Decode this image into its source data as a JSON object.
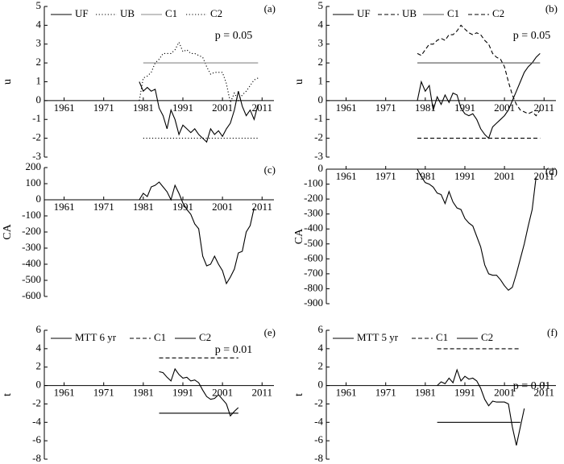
{
  "chart_data": [
    {
      "type": "line",
      "panel_label": "(a)",
      "ylabel": "u",
      "annotation": "p = 0.05",
      "xlim": [
        1956,
        2014
      ],
      "xticks": [
        1961,
        1971,
        1981,
        1991,
        2001,
        2011
      ],
      "ylim": [
        -3,
        5
      ],
      "yticks": [
        -3,
        -2,
        -1,
        0,
        1,
        2,
        3,
        4,
        5
      ],
      "series": [
        {
          "name": "UF",
          "color": "#000000",
          "dash": "solid",
          "x": [
            1980,
            1981,
            1982,
            1983,
            1984,
            1985,
            1986,
            1987,
            1988,
            1989,
            1990,
            1991,
            1992,
            1993,
            1994,
            1995,
            1996,
            1997,
            1998,
            1999,
            2000,
            2001,
            2002,
            2003,
            2004,
            2005,
            2006,
            2007,
            2008,
            2009,
            2010
          ],
          "values": [
            1.0,
            0.5,
            0.7,
            0.5,
            0.6,
            -0.4,
            -0.8,
            -1.5,
            -0.5,
            -1.0,
            -1.8,
            -1.3,
            -1.5,
            -1.7,
            -1.5,
            -1.8,
            -2.0,
            -2.2,
            -1.5,
            -1.8,
            -1.6,
            -1.9,
            -1.5,
            -1.2,
            -0.5,
            0.5,
            -0.3,
            -0.8,
            -0.5,
            -1.0,
            -0.2
          ]
        },
        {
          "name": "UB",
          "color": "#000000",
          "dash": "dotted",
          "x": [
            1980,
            1981,
            1982,
            1983,
            1984,
            1985,
            1986,
            1987,
            1988,
            1989,
            1990,
            1991,
            1992,
            1993,
            1994,
            1995,
            1996,
            1997,
            1998,
            1999,
            2000,
            2001,
            2002,
            2003,
            2004,
            2005,
            2006,
            2007,
            2008,
            2009,
            2010
          ],
          "values": [
            0.0,
            1.2,
            1.3,
            1.5,
            2.0,
            2.2,
            2.5,
            2.5,
            2.5,
            2.7,
            3.1,
            2.6,
            2.7,
            2.5,
            2.5,
            2.4,
            2.3,
            1.8,
            1.4,
            1.5,
            1.5,
            1.5,
            0.9,
            -0.1,
            0.4,
            0.0,
            0.3,
            0.5,
            0.8,
            1.1,
            1.2
          ]
        },
        {
          "name": "C1",
          "color": "#888888",
          "dash": "solid",
          "x": [
            1981,
            2010
          ],
          "values": [
            2,
            2
          ]
        },
        {
          "name": "C2",
          "color": "#000000",
          "dash": "dotted",
          "x": [
            1981,
            2010
          ],
          "values": [
            -2,
            -2
          ]
        }
      ]
    },
    {
      "type": "line",
      "panel_label": "(b)",
      "ylabel": "u",
      "annotation": "p = 0.05",
      "xlim": [
        1956,
        2014
      ],
      "xticks": [
        1961,
        1971,
        1981,
        1991,
        2001,
        2011
      ],
      "ylim": [
        -3,
        5
      ],
      "yticks": [
        -3,
        -2,
        -1,
        0,
        1,
        2,
        3,
        4,
        5
      ],
      "series": [
        {
          "name": "UF",
          "color": "#000000",
          "dash": "solid",
          "x": [
            1979,
            1980,
            1981,
            1982,
            1983,
            1984,
            1985,
            1986,
            1987,
            1988,
            1989,
            1990,
            1991,
            1992,
            1993,
            1994,
            1995,
            1996,
            1997,
            1998,
            1999,
            2000,
            2001,
            2002,
            2003,
            2004,
            2005,
            2006,
            2007,
            2008,
            2009,
            2010
          ],
          "values": [
            0.0,
            1.0,
            0.5,
            0.8,
            -0.5,
            0.2,
            -0.2,
            0.3,
            -0.1,
            0.4,
            0.3,
            -0.4,
            -0.7,
            -0.8,
            -0.7,
            -1.0,
            -1.5,
            -1.8,
            -2.0,
            -1.4,
            -1.2,
            -1.0,
            -0.8,
            -0.5,
            0.0,
            0.5,
            1.0,
            1.5,
            1.8,
            2.0,
            2.3,
            2.5
          ]
        },
        {
          "name": "UB",
          "color": "#000000",
          "dash": "dashed",
          "x": [
            1979,
            1980,
            1981,
            1982,
            1983,
            1984,
            1985,
            1986,
            1987,
            1988,
            1989,
            1990,
            1991,
            1992,
            1993,
            1994,
            1995,
            1996,
            1997,
            1998,
            1999,
            2000,
            2001,
            2002,
            2003,
            2004,
            2005,
            2006,
            2007,
            2008,
            2009,
            2010
          ],
          "values": [
            2.5,
            2.4,
            2.7,
            3.0,
            3.0,
            3.2,
            3.3,
            3.2,
            3.5,
            3.5,
            3.7,
            4.0,
            3.8,
            3.6,
            3.5,
            3.6,
            3.5,
            3.2,
            3.0,
            2.5,
            2.3,
            2.2,
            1.8,
            1.0,
            0.3,
            -0.2,
            -0.5,
            -0.6,
            -0.7,
            -0.6,
            -0.8,
            -0.5
          ]
        },
        {
          "name": "C1",
          "color": "#555555",
          "dash": "solid",
          "x": [
            1979,
            2010
          ],
          "values": [
            2,
            2
          ]
        },
        {
          "name": "C2",
          "color": "#000000",
          "dash": "dashed",
          "x": [
            1979,
            2010
          ],
          "values": [
            -2,
            -2
          ]
        }
      ]
    },
    {
      "type": "line",
      "panel_label": "(c)",
      "ylabel": "CA",
      "xlim": [
        1956,
        2014
      ],
      "xticks": [
        1961,
        1971,
        1981,
        1991,
        2001,
        2011
      ],
      "ylim": [
        -600,
        200
      ],
      "yticks": [
        -600,
        -500,
        -400,
        -300,
        -200,
        -100,
        0,
        100,
        200
      ],
      "series": [
        {
          "name": "CA",
          "color": "#000000",
          "dash": "solid",
          "x": [
            1980,
            1981,
            1982,
            1983,
            1984,
            1985,
            1986,
            1987,
            1988,
            1989,
            1990,
            1991,
            1992,
            1993,
            1994,
            1995,
            1996,
            1997,
            1998,
            1999,
            2000,
            2001,
            2002,
            2003,
            2004,
            2005,
            2006,
            2007,
            2008,
            2009
          ],
          "values": [
            0,
            40,
            20,
            80,
            90,
            110,
            80,
            50,
            0,
            90,
            40,
            -20,
            -60,
            -90,
            -150,
            -180,
            -350,
            -410,
            -400,
            -350,
            -400,
            -440,
            -520,
            -480,
            -430,
            -330,
            -320,
            -200,
            -160,
            -50
          ]
        }
      ]
    },
    {
      "type": "line",
      "panel_label": "(d)",
      "ylabel": "CA",
      "xlim": [
        1956,
        2014
      ],
      "xticks": [
        1961,
        1971,
        1981,
        1991,
        2001,
        2011
      ],
      "ylim": [
        -900,
        0
      ],
      "yticks": [
        -900,
        -800,
        -700,
        -600,
        -500,
        -400,
        -300,
        -200,
        -100,
        0
      ],
      "series": [
        {
          "name": "CA",
          "color": "#000000",
          "dash": "solid",
          "x": [
            1979,
            1980,
            1981,
            1982,
            1983,
            1984,
            1985,
            1986,
            1987,
            1988,
            1989,
            1990,
            1991,
            1992,
            1993,
            1994,
            1995,
            1996,
            1997,
            1998,
            1999,
            2000,
            2001,
            2002,
            2003,
            2004,
            2005,
            2006,
            2007,
            2008,
            2009
          ],
          "values": [
            0,
            -50,
            -90,
            -100,
            -120,
            -160,
            -170,
            -230,
            -150,
            -220,
            -260,
            -270,
            -330,
            -360,
            -380,
            -450,
            -520,
            -640,
            -700,
            -710,
            -710,
            -740,
            -780,
            -810,
            -790,
            -700,
            -600,
            -500,
            -380,
            -270,
            -50
          ]
        }
      ]
    },
    {
      "type": "line",
      "panel_label": "(e)",
      "ylabel": "t",
      "annotation": "p = 0.01",
      "xlim": [
        1956,
        2014
      ],
      "xticks": [
        1961,
        1971,
        1981,
        1991,
        2001,
        2011
      ],
      "ylim": [
        -8,
        6
      ],
      "yticks": [
        -8,
        -6,
        -4,
        -2,
        0,
        2,
        4,
        6
      ],
      "series": [
        {
          "name": "MTT 6 yr",
          "color": "#000000",
          "dash": "solid",
          "x": [
            1985,
            1986,
            1987,
            1988,
            1989,
            1990,
            1991,
            1992,
            1993,
            1994,
            1995,
            1996,
            1997,
            1998,
            1999,
            2000,
            2001,
            2002,
            2003,
            2004,
            2005
          ],
          "values": [
            1.5,
            1.4,
            0.9,
            0.5,
            1.8,
            1.2,
            0.8,
            0.9,
            0.5,
            0.6,
            0.3,
            -0.5,
            -1.2,
            -1.5,
            -1.4,
            -1.0,
            -1.5,
            -2.0,
            -3.3,
            -2.8,
            -2.4
          ]
        },
        {
          "name": "C1",
          "color": "#000000",
          "dash": "dashed",
          "x": [
            1985,
            2005
          ],
          "values": [
            3,
            3
          ]
        },
        {
          "name": "C2",
          "color": "#000000",
          "dash": "solid",
          "x": [
            1985,
            2005
          ],
          "values": [
            -3,
            -3
          ]
        }
      ]
    },
    {
      "type": "line",
      "panel_label": "(f)",
      "ylabel": "t",
      "annotation": "p = 0.01",
      "xlim": [
        1956,
        2014
      ],
      "xticks": [
        1961,
        1971,
        1981,
        1991,
        2001,
        2011
      ],
      "ylim": [
        -8,
        6
      ],
      "yticks": [
        -8,
        -6,
        -4,
        -2,
        0,
        2,
        4,
        6
      ],
      "series": [
        {
          "name": "MTT 5 yr",
          "color": "#000000",
          "dash": "solid",
          "x": [
            1984,
            1985,
            1986,
            1987,
            1988,
            1989,
            1990,
            1991,
            1992,
            1993,
            1994,
            1995,
            1996,
            1997,
            1998,
            1999,
            2000,
            2001,
            2002,
            2003,
            2004,
            2005,
            2006
          ],
          "values": [
            0.0,
            0.4,
            0.2,
            0.8,
            0.3,
            1.7,
            0.5,
            1.0,
            0.7,
            0.8,
            0.5,
            -0.3,
            -1.5,
            -2.2,
            -1.7,
            -1.8,
            -1.8,
            -1.8,
            -2.0,
            -4.5,
            -6.5,
            -4.5,
            -2.5
          ]
        },
        {
          "name": "C1",
          "color": "#000000",
          "dash": "dashed",
          "x": [
            1984,
            2005
          ],
          "values": [
            4,
            4
          ]
        },
        {
          "name": "C2",
          "color": "#000000",
          "dash": "solid",
          "x": [
            1984,
            2005
          ],
          "values": [
            -4,
            -4
          ]
        }
      ]
    }
  ]
}
